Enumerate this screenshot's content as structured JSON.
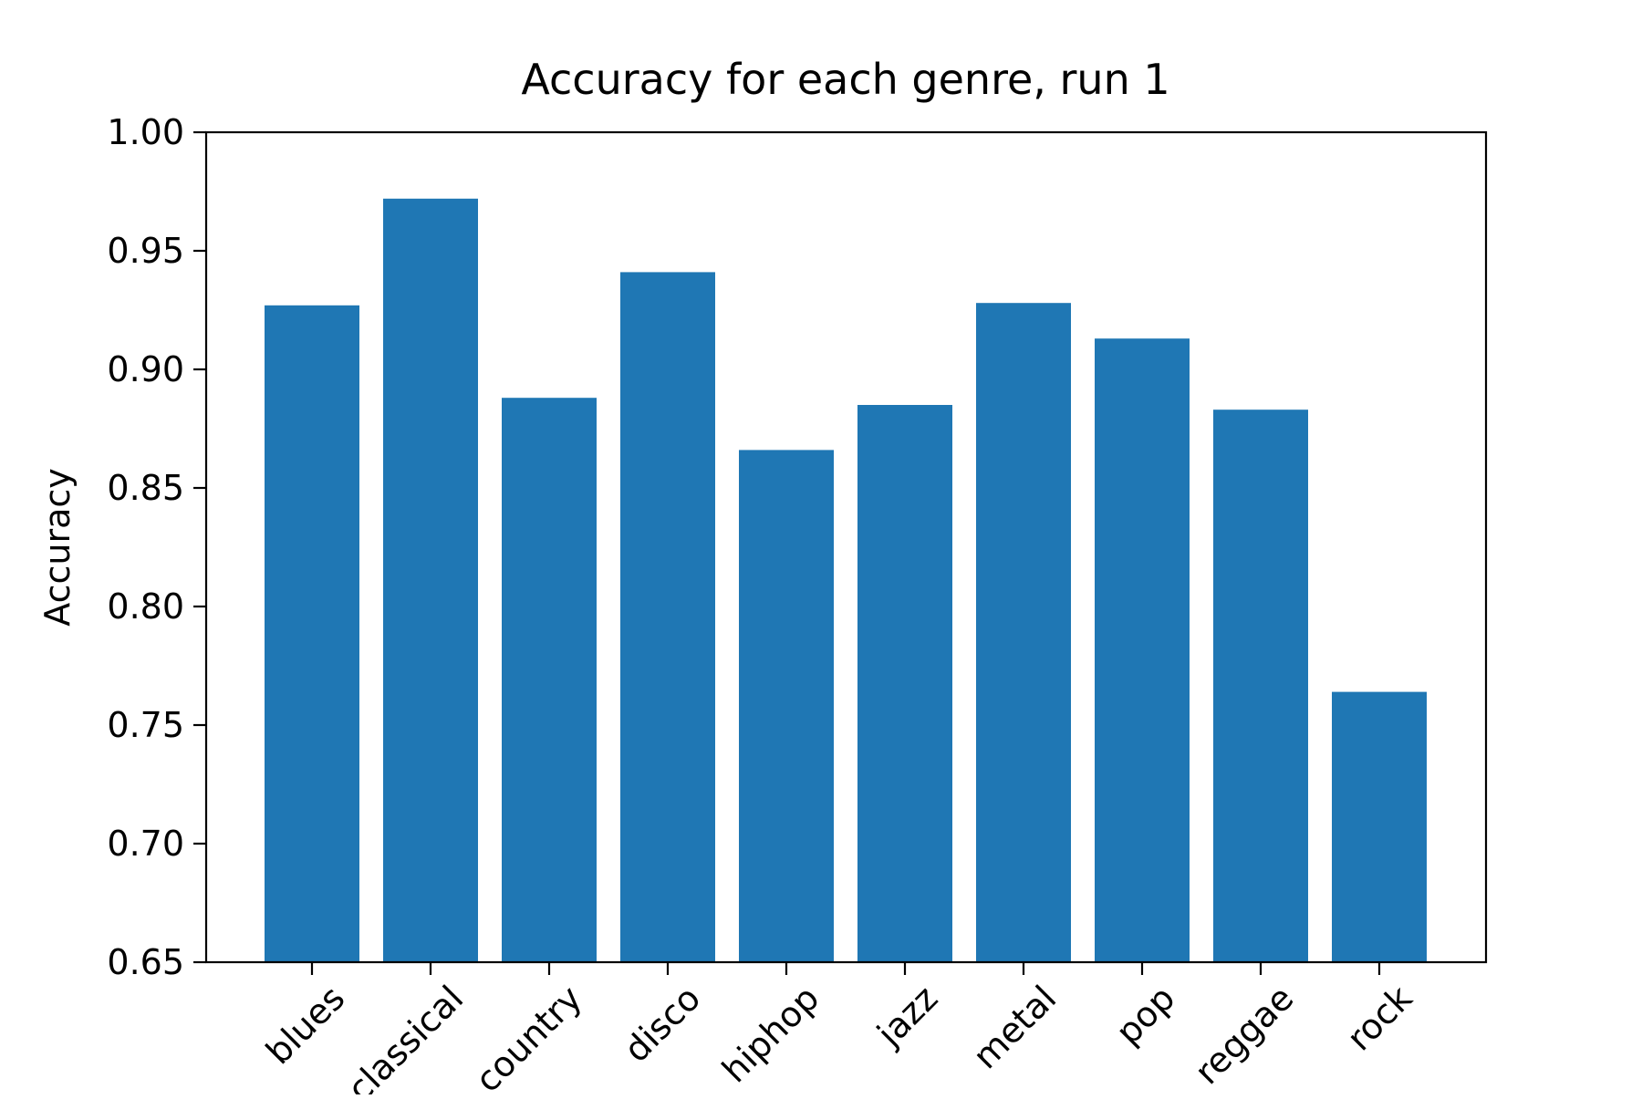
{
  "chart_data": {
    "type": "bar",
    "title": "Accuracy for each genre, run 1",
    "xlabel": "",
    "ylabel": "Accuracy",
    "categories": [
      "blues",
      "classical",
      "country",
      "disco",
      "hiphop",
      "jazz",
      "metal",
      "pop",
      "reggae",
      "rock"
    ],
    "values": [
      0.927,
      0.972,
      0.888,
      0.941,
      0.866,
      0.885,
      0.928,
      0.913,
      0.883,
      0.764
    ],
    "ylim": [
      0.65,
      1.0
    ],
    "yticks": [
      "0.65",
      "0.70",
      "0.75",
      "0.80",
      "0.85",
      "0.90",
      "0.95",
      "1.00"
    ],
    "bar_color": "#1f77b4",
    "grid": false,
    "legend": "none"
  }
}
